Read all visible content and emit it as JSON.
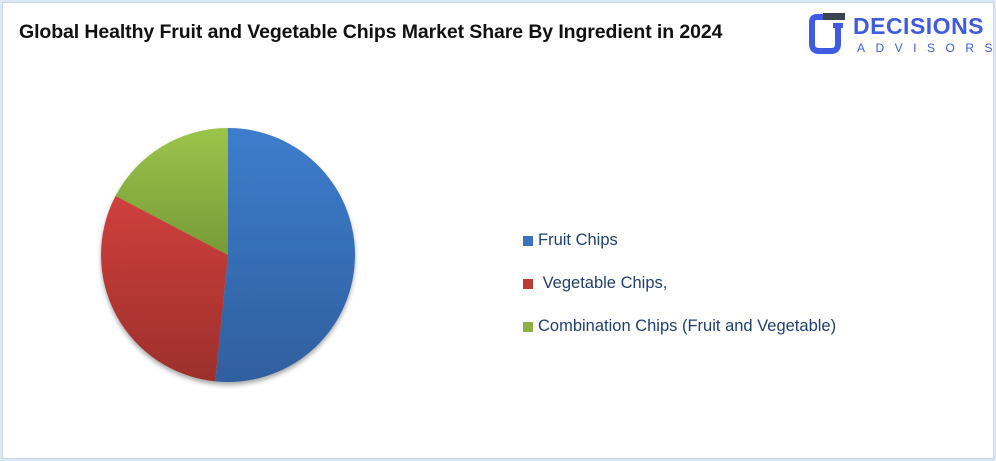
{
  "header": {
    "title": "Global Healthy Fruit and Vegetable Chips Market Share By Ingredient in 2024"
  },
  "logo": {
    "icon": "decisions-advisors-logo-icon",
    "line1": "DECISIONS",
    "line2": "ADVISORS",
    "color": "#3f5be0"
  },
  "chart_data": {
    "type": "pie",
    "title": "Global Healthy Fruit and Vegetable Chips Market Share By Ingredient in 2024",
    "categories": [
      "Fruit Chips",
      " Vegetable Chips,",
      "Combination Chips (Fruit and Vegetable)"
    ],
    "values": [
      51.6,
      31.1,
      17.3
    ],
    "colors": [
      "#3b73c0",
      "#bb3a36",
      "#8cb043"
    ],
    "start_angle_deg": 0,
    "direction": "clockwise",
    "legend_position": "right",
    "data_labels": false
  },
  "legend": {
    "items": [
      {
        "label": "Fruit Chips",
        "color": "#3b73c0"
      },
      {
        "label": " Vegetable Chips,",
        "color": "#bb3a36"
      },
      {
        "label": "Combination Chips (Fruit and Vegetable)",
        "color": "#8cb043"
      }
    ]
  }
}
